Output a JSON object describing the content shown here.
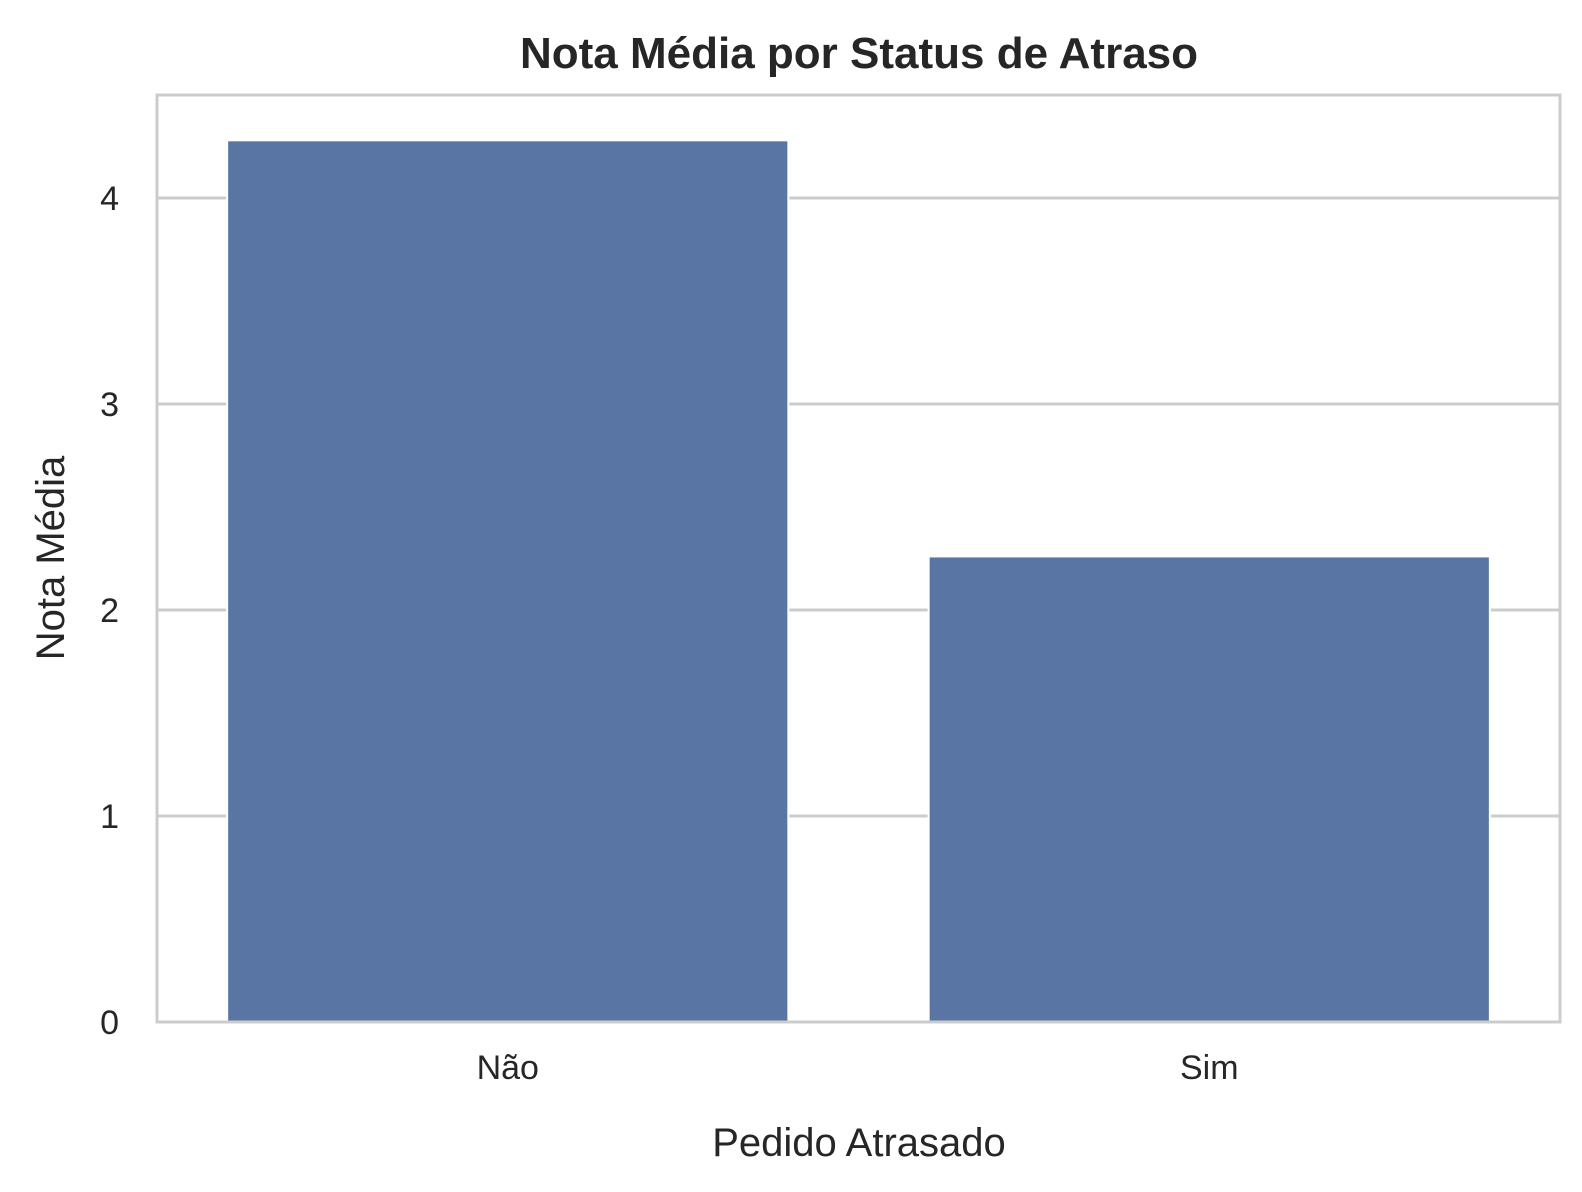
{
  "chart_data": {
    "type": "bar",
    "title": "Nota Média por Status de Atraso",
    "xlabel": "Pedido Atrasado",
    "ylabel": "Nota Média",
    "categories": [
      "Não",
      "Sim"
    ],
    "values": [
      4.28,
      2.26
    ],
    "ylim": [
      0,
      4.5
    ],
    "yticks": [
      0,
      1,
      2,
      3,
      4
    ],
    "grid": "horizontal",
    "colors": {
      "bar": "#5975a4",
      "grid": "#cccccc",
      "spine": "#cccccc",
      "text": "#262626"
    }
  }
}
